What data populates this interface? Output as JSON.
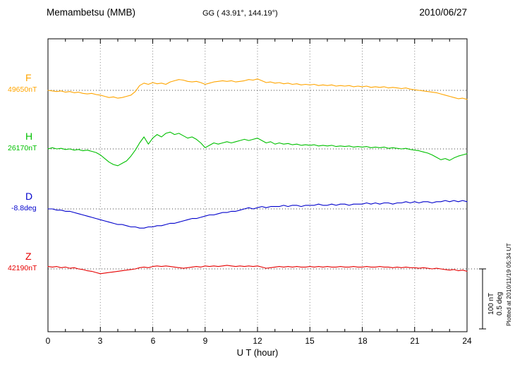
{
  "header": {
    "station": "Memambetsu (MMB)",
    "coordinates": "GG ( 43.91°, 144.19°)",
    "date": "2010/06/27"
  },
  "axis": {
    "xlabel": "U T (hour)",
    "ticks": [
      "0",
      "3",
      "6",
      "9",
      "12",
      "15",
      "18",
      "21",
      "24"
    ]
  },
  "scalebar": {
    "nt_label": "100 nT",
    "deg_label": "0.5 deg"
  },
  "footer": {
    "plotted_note": "Plotted at 2010/11/19 05:34 UT"
  },
  "chart_data": {
    "type": "line",
    "title": "Memambetsu (MMB) magnetogram 2010/06/27",
    "xlabel": "U T (hour)",
    "x_range_hours": [
      0,
      24
    ],
    "x_step_hours": 0.25,
    "x_ticks": [
      0,
      3,
      6,
      9,
      12,
      15,
      18,
      21,
      24
    ],
    "grid": "vertical-dotted-every-3h",
    "scale": {
      "nT_per_bar": 100,
      "deg_per_bar": 0.5
    },
    "series": [
      {
        "name": "F",
        "unit": "nT",
        "baseline_value": 49650,
        "baseline_label": "49650nT",
        "color": "#ffa500",
        "offsets_from_baseline": [
          0,
          -1,
          -2,
          -1,
          -3,
          -2,
          -4,
          -3,
          -5,
          -6,
          -5,
          -7,
          -8,
          -10,
          -12,
          -11,
          -13,
          -12,
          -10,
          -8,
          -2,
          8,
          12,
          10,
          13,
          11,
          12,
          10,
          14,
          16,
          18,
          17,
          15,
          14,
          15,
          13,
          10,
          12,
          14,
          15,
          16,
          15,
          16,
          14,
          15,
          16,
          18,
          17,
          19,
          16,
          13,
          14,
          12,
          13,
          11,
          12,
          10,
          11,
          9,
          10,
          9,
          10,
          8,
          9,
          8,
          9,
          7,
          8,
          7,
          8,
          6,
          7,
          6,
          7,
          5,
          6,
          5,
          6,
          4,
          5,
          4,
          3,
          4,
          2,
          1,
          0,
          -1,
          -2,
          -3,
          -4,
          -6,
          -8,
          -10,
          -12,
          -14,
          -13,
          -15
        ]
      },
      {
        "name": "H",
        "unit": "nT",
        "baseline_value": 26170,
        "baseline_label": "26170nT",
        "color": "#00c000",
        "offsets_from_baseline": [
          0,
          2,
          0,
          1,
          -1,
          0,
          -2,
          -1,
          -3,
          -2,
          -4,
          -6,
          -10,
          -16,
          -22,
          -26,
          -28,
          -24,
          -20,
          -12,
          -2,
          10,
          20,
          8,
          18,
          24,
          20,
          26,
          28,
          24,
          26,
          22,
          18,
          20,
          16,
          10,
          2,
          6,
          10,
          8,
          10,
          12,
          10,
          12,
          14,
          16,
          14,
          16,
          18,
          14,
          10,
          12,
          8,
          10,
          8,
          9,
          7,
          8,
          6,
          7,
          6,
          7,
          5,
          6,
          5,
          6,
          4,
          5,
          4,
          5,
          3,
          4,
          3,
          4,
          2,
          3,
          2,
          3,
          1,
          2,
          1,
          0,
          1,
          -1,
          -2,
          -3,
          -5,
          -7,
          -10,
          -14,
          -18,
          -16,
          -19,
          -15,
          -12,
          -10,
          -8
        ]
      },
      {
        "name": "D",
        "unit": "deg",
        "baseline_value": -8.8,
        "baseline_label": "-8.8deg",
        "color": "#0000cc",
        "offsets_from_baseline": [
          0,
          0,
          -0.01,
          -0.01,
          -0.02,
          -0.02,
          -0.03,
          -0.04,
          -0.05,
          -0.06,
          -0.07,
          -0.08,
          -0.09,
          -0.1,
          -0.11,
          -0.12,
          -0.13,
          -0.13,
          -0.14,
          -0.15,
          -0.15,
          -0.16,
          -0.16,
          -0.15,
          -0.15,
          -0.14,
          -0.14,
          -0.13,
          -0.12,
          -0.12,
          -0.11,
          -0.1,
          -0.09,
          -0.08,
          -0.08,
          -0.07,
          -0.06,
          -0.05,
          -0.05,
          -0.04,
          -0.03,
          -0.03,
          -0.02,
          -0.02,
          -0.01,
          0,
          0.01,
          0,
          0.01,
          0.02,
          0.01,
          0.02,
          0.02,
          0.02,
          0.03,
          0.02,
          0.03,
          0.03,
          0.02,
          0.03,
          0.03,
          0.03,
          0.04,
          0.03,
          0.03,
          0.04,
          0.03,
          0.04,
          0.04,
          0.03,
          0.04,
          0.04,
          0.04,
          0.05,
          0.04,
          0.05,
          0.04,
          0.05,
          0.05,
          0.04,
          0.05,
          0.05,
          0.06,
          0.05,
          0.06,
          0.05,
          0.06,
          0.06,
          0.05,
          0.06,
          0.06,
          0.07,
          0.06,
          0.07,
          0.06,
          0.07,
          0.06
        ]
      },
      {
        "name": "Z",
        "unit": "nT",
        "baseline_value": 42190,
        "baseline_label": "42190nT",
        "color": "#e60000",
        "offsets_from_baseline": [
          4,
          3,
          4,
          2,
          3,
          1,
          2,
          0,
          -1,
          -3,
          -4,
          -6,
          -8,
          -7,
          -6,
          -5,
          -4,
          -3,
          -2,
          -1,
          0,
          2,
          3,
          2,
          4,
          5,
          4,
          5,
          4,
          3,
          2,
          1,
          2,
          3,
          4,
          3,
          5,
          4,
          5,
          4,
          5,
          6,
          5,
          4,
          5,
          4,
          5,
          4,
          5,
          3,
          1,
          2,
          3,
          4,
          3,
          4,
          3,
          4,
          3,
          3,
          4,
          3,
          4,
          3,
          4,
          3,
          3,
          4,
          3,
          3,
          4,
          3,
          3,
          4,
          3,
          3,
          4,
          3,
          3,
          2,
          3,
          2,
          3,
          2,
          2,
          1,
          2,
          1,
          0,
          1,
          0,
          -1,
          -2,
          -1,
          -3,
          -2,
          -4
        ]
      }
    ]
  }
}
